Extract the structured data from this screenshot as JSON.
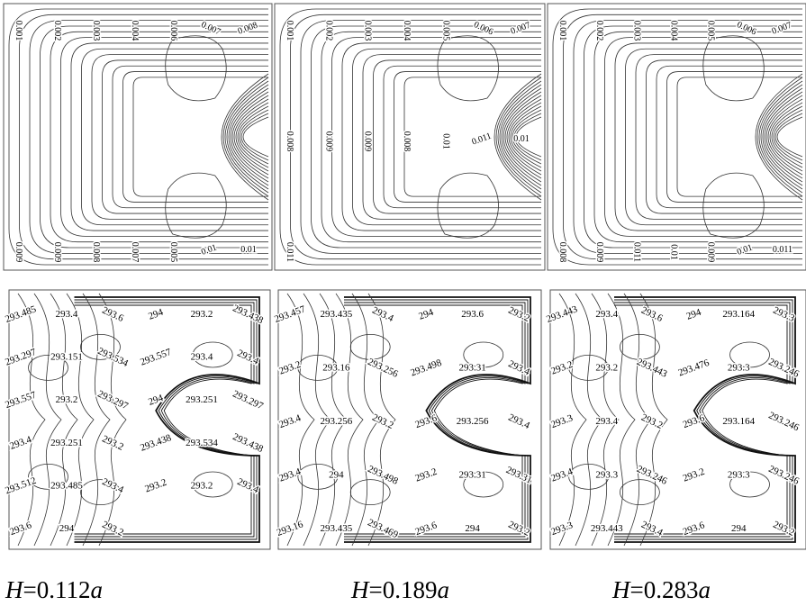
{
  "figure": {
    "captions": [
      {
        "var": "H",
        "value": "=0.112",
        "unit": "a"
      },
      {
        "var": "H",
        "value": "=0.189",
        "unit": "a"
      },
      {
        "var": "H",
        "value": "=0.283",
        "unit": "a"
      }
    ],
    "top_row_labels": [
      [
        "0.001",
        "0.002",
        "0.003",
        "0.004",
        "0.006",
        "0.007",
        "0.008",
        "0.009",
        "0.009",
        "0.008",
        "0.007",
        "0.005",
        "0.01",
        "0.01"
      ],
      [
        "0.001",
        "0.002",
        "0.003",
        "0.004",
        "0.005",
        "0.006",
        "0.007",
        "0.008",
        "0.009",
        "0.009",
        "0.008",
        "0.01",
        "0.011",
        "0.01",
        "0.011"
      ],
      [
        "0.001",
        "0.002",
        "0.003",
        "0.004",
        "0.005",
        "0.006",
        "0.007",
        "0.008",
        "0.009",
        "0.011",
        "0.01",
        "0.009",
        "0.01",
        "0.011"
      ]
    ],
    "bottom_row_labels": [
      [
        "293.485",
        "293.4",
        "293.6",
        "294",
        "293.2",
        "293.438",
        "293.297",
        "293.151",
        "293.534",
        "293.557",
        "293.4",
        "293.4",
        "293.557",
        "293.2",
        "293.297",
        "294",
        "293.251",
        "293.297",
        "293.4",
        "293.251",
        "293.2",
        "293.438",
        "293.534",
        "293.438",
        "293.512",
        "293.485",
        "293.4",
        "293.2",
        "293.2",
        "293.4",
        "293.6",
        "294",
        "293.2"
      ],
      [
        "293.457",
        "293.435",
        "293.4",
        "294",
        "293.6",
        "293.2",
        "293.2",
        "293.16",
        "293.256",
        "293.498",
        "293.31",
        "293.4",
        "293.4",
        "293.256",
        "293.2",
        "293.6",
        "293.256",
        "293.4",
        "293.4",
        "294",
        "293.498",
        "293.2",
        "293.31",
        "293.31",
        "293.16",
        "293.435",
        "293.469",
        "293.6",
        "294",
        "293.2"
      ],
      [
        "293.443",
        "293.4",
        "293.6",
        "294",
        "293.164",
        "293.3",
        "293.2",
        "293.2",
        "293.443",
        "293.476",
        "293.3",
        "293.246",
        "293.3",
        "293.4",
        "293.2",
        "293.6",
        "293.164",
        "293.246",
        "293.4",
        "293.3",
        "293.246",
        "293.2",
        "293.3",
        "293.246",
        "293.3",
        "293.443",
        "293.4",
        "293.6",
        "294",
        "293.2"
      ]
    ]
  }
}
